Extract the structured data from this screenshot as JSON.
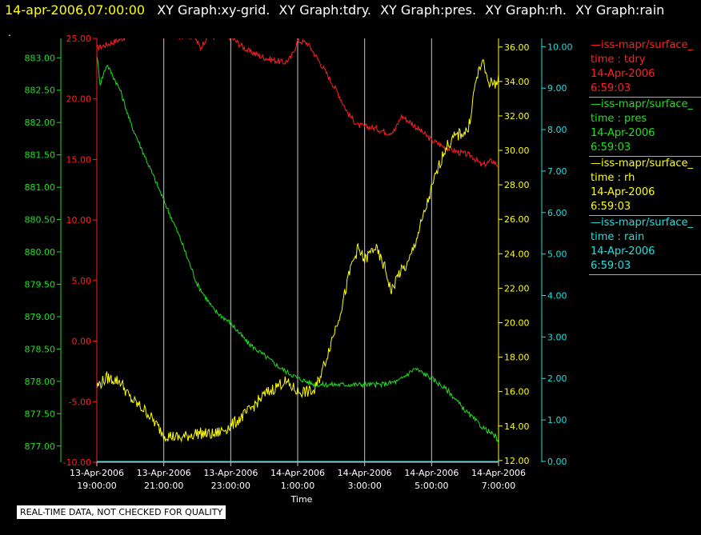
{
  "header": {
    "timestamp": "14-apr-2006,07:00:00",
    "titles": [
      "XY Graph:xy-grid.",
      "XY Graph:tdry.",
      "XY Graph:pres.",
      "XY Graph:rh.",
      "XY Graph:rain"
    ]
  },
  "header_dot": ".",
  "footer_note": "REAL-TIME DATA, NOT CHECKED FOR QUALITY",
  "colors": {
    "tdry": "#ff2020",
    "pres": "#20e020",
    "rh": "#ffff00",
    "rain": "#20e0e0",
    "grid": "#c8c8c8",
    "background": "#000000"
  },
  "legend": [
    {
      "line": "—iss-mapr/surface_",
      "var": "time : tdry",
      "date": "14-Apr-2006",
      "time": "6:59:03",
      "color": "#ff2020"
    },
    {
      "line": "—iss-mapr/surface_",
      "var": "time : pres",
      "date": "14-Apr-2006",
      "time": "6:59:03",
      "color": "#20e020"
    },
    {
      "line": "—iss-mapr/surface_",
      "var": "time : rh",
      "date": "14-Apr-2006",
      "time": "6:59:03",
      "color": "#ffff00"
    },
    {
      "line": "—iss-mapr/surface_",
      "var": "time : rain",
      "date": "14-Apr-2006",
      "time": "6:59:03",
      "color": "#20e0e0"
    }
  ],
  "chart_data": {
    "type": "line",
    "xlabel": "Time",
    "x_ticks": [
      {
        "date": "13-Apr-2006",
        "time": "19:00:00",
        "h": 0
      },
      {
        "date": "13-Apr-2006",
        "time": "21:00:00",
        "h": 2
      },
      {
        "date": "13-Apr-2006",
        "time": "23:00:00",
        "h": 4
      },
      {
        "date": "14-Apr-2006",
        "time": "1:00:00",
        "h": 6
      },
      {
        "date": "14-Apr-2006",
        "time": "3:00:00",
        "h": 8
      },
      {
        "date": "14-Apr-2006",
        "time": "5:00:00",
        "h": 10
      },
      {
        "date": "14-Apr-2006",
        "time": "7:00:00",
        "h": 12
      }
    ],
    "axes": {
      "tdry": {
        "ylim": [
          -10,
          25
        ],
        "ticks": [
          "-10.00",
          "-5.00",
          "0.00",
          "5.00",
          "10.00",
          "15.00",
          "20.00",
          "25.00"
        ]
      },
      "pres": {
        "ylim": [
          876.75,
          883.3
        ],
        "ticks": [
          "877.00",
          "877.50",
          "878.00",
          "878.50",
          "879.00",
          "879.50",
          "880.00",
          "880.50",
          "881.00",
          "881.50",
          "882.00",
          "882.50",
          "883.00"
        ]
      },
      "rh": {
        "ylim": [
          11.9,
          36.5
        ],
        "ticks": [
          "12.00",
          "14.00",
          "16.00",
          "18.00",
          "20.00",
          "22.00",
          "24.00",
          "26.00",
          "28.00",
          "30.00",
          "32.00",
          "34.00",
          "36.00"
        ]
      },
      "rain": {
        "ylim": [
          -0.02,
          10.2
        ],
        "ticks": [
          "0.00",
          "1.00",
          "2.00",
          "3.00",
          "4.00",
          "5.00",
          "6.00",
          "7.00",
          "8.00",
          "9.00",
          "10.00"
        ]
      }
    },
    "grid": true,
    "series": [
      {
        "name": "tdry",
        "points": [
          [
            0,
            24.2
          ],
          [
            0.5,
            24.7
          ],
          [
            1,
            25.3
          ],
          [
            2.9,
            25.2
          ],
          [
            3.1,
            24.2
          ],
          [
            3.3,
            25.2
          ],
          [
            4,
            25.1
          ],
          [
            4.5,
            24.0
          ],
          [
            5,
            23.4
          ],
          [
            5.6,
            23.0
          ],
          [
            5.8,
            23.4
          ],
          [
            6,
            24.8
          ],
          [
            6.3,
            24.6
          ],
          [
            6.8,
            22.4
          ],
          [
            7.2,
            20.5
          ],
          [
            7.5,
            18.8
          ],
          [
            7.8,
            17.8
          ],
          [
            8.3,
            17.6
          ],
          [
            8.7,
            17.2
          ],
          [
            8.9,
            17.4
          ],
          [
            9.1,
            18.6
          ],
          [
            9.4,
            18.0
          ],
          [
            10,
            16.6
          ],
          [
            10.4,
            16.0
          ],
          [
            10.8,
            15.6
          ],
          [
            11.2,
            15.3
          ],
          [
            11.5,
            14.5
          ],
          [
            11.8,
            14.9
          ],
          [
            12,
            14.5
          ]
        ]
      },
      {
        "name": "pres",
        "points": [
          [
            0,
            883.05
          ],
          [
            0.1,
            882.6
          ],
          [
            0.3,
            882.9
          ],
          [
            0.7,
            882.5
          ],
          [
            1,
            882.0
          ],
          [
            1.5,
            881.4
          ],
          [
            2,
            880.8
          ],
          [
            2.5,
            880.2
          ],
          [
            3,
            879.5
          ],
          [
            3.5,
            879.1
          ],
          [
            4,
            878.9
          ],
          [
            4.5,
            878.6
          ],
          [
            5,
            878.4
          ],
          [
            5.5,
            878.2
          ],
          [
            6,
            878.05
          ],
          [
            6.5,
            877.95
          ],
          [
            7,
            877.95
          ],
          [
            7.5,
            877.95
          ],
          [
            8,
            877.95
          ],
          [
            8.5,
            877.95
          ],
          [
            9,
            878.0
          ],
          [
            9.5,
            878.2
          ],
          [
            10,
            878.05
          ],
          [
            10.5,
            877.85
          ],
          [
            11,
            877.55
          ],
          [
            11.5,
            877.3
          ],
          [
            11.9,
            877.15
          ],
          [
            12,
            877.05
          ]
        ]
      },
      {
        "name": "rh",
        "points": [
          [
            0,
            16.3
          ],
          [
            0.3,
            16.8
          ],
          [
            0.7,
            16.6
          ],
          [
            1,
            15.6
          ],
          [
            1.5,
            14.8
          ],
          [
            2,
            13.5
          ],
          [
            2.5,
            13.3
          ],
          [
            3,
            13.6
          ],
          [
            3.5,
            13.5
          ],
          [
            4,
            14.0
          ],
          [
            4.5,
            14.8
          ],
          [
            5,
            15.8
          ],
          [
            5.6,
            16.6
          ],
          [
            6,
            16.0
          ],
          [
            6.5,
            16.0
          ],
          [
            6.8,
            17.6
          ],
          [
            7.3,
            20.8
          ],
          [
            7.6,
            23.3
          ],
          [
            7.8,
            24.3
          ],
          [
            8,
            23.6
          ],
          [
            8.3,
            24.4
          ],
          [
            8.6,
            23.2
          ],
          [
            8.8,
            21.8
          ],
          [
            9,
            22.8
          ],
          [
            9.3,
            23.4
          ],
          [
            9.7,
            25.8
          ],
          [
            10.1,
            28.4
          ],
          [
            10.4,
            30.1
          ],
          [
            10.7,
            30.8
          ],
          [
            11.1,
            31.2
          ],
          [
            11.3,
            33.8
          ],
          [
            11.5,
            35.2
          ],
          [
            11.7,
            34.0
          ],
          [
            11.9,
            33.8
          ],
          [
            12,
            34.4
          ]
        ]
      },
      {
        "name": "rain",
        "points": [
          [
            0,
            0.0
          ],
          [
            12,
            0.0
          ]
        ]
      }
    ]
  }
}
